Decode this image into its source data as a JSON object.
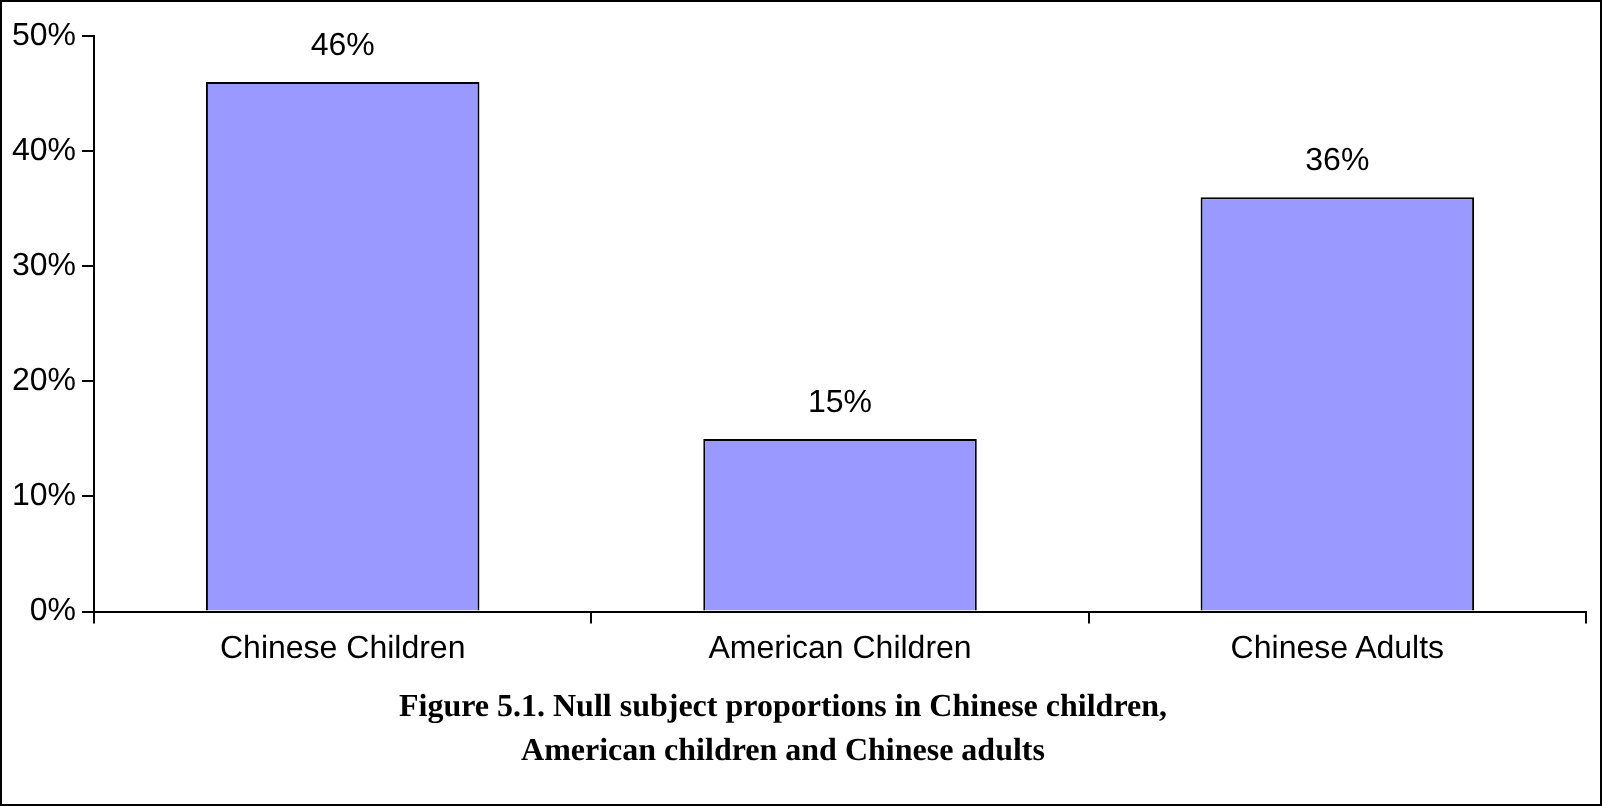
{
  "chart_data": {
    "type": "bar",
    "categories": [
      "Chinese Children",
      "American Children",
      "Chinese Adults"
    ],
    "values": [
      46,
      15,
      36
    ],
    "value_labels": [
      "46%",
      "15%",
      "36%"
    ],
    "color": "#9999ff",
    "ylim": [
      0,
      50
    ],
    "yticks": [
      {
        "value": 0,
        "label": "0%"
      },
      {
        "value": 10,
        "label": "10%"
      },
      {
        "value": 20,
        "label": "20%"
      },
      {
        "value": 30,
        "label": "30%"
      },
      {
        "value": 40,
        "label": "40%"
      },
      {
        "value": 50,
        "label": "50%"
      }
    ],
    "grid": false,
    "legend": false,
    "annotations": [
      "Figure 5.1.  Null subject proportions in Chinese children,\nAmerican children and Chinese adults"
    ]
  }
}
